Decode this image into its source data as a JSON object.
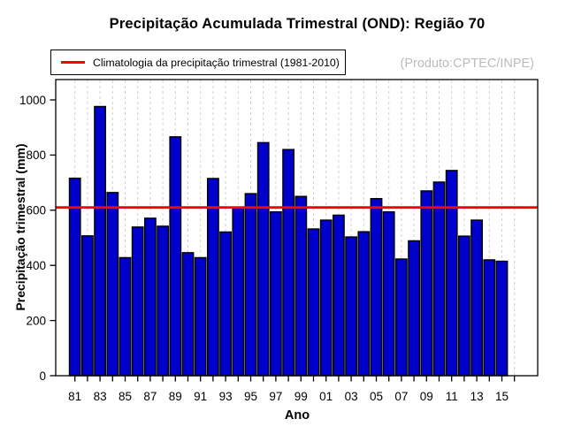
{
  "chart_data": {
    "type": "bar",
    "title": "Precipitação Acumulada Trimestral (OND): Região 70",
    "xlabel": "Ano",
    "ylabel": "Precipitação trimestral (mm)",
    "source_label": "(Produto:CPTEC/INPE)",
    "legend": {
      "label": "Climatologia da precipitação trimestral (1981-2010)",
      "position": "top-left",
      "line_color": "#ff0000"
    },
    "ylim": [
      0,
      1074
    ],
    "yticks": [
      0,
      200,
      400,
      600,
      800,
      1000
    ],
    "grid": {
      "style": "dashed-vertical",
      "color": "#d2d2d2"
    },
    "years": [
      1981,
      1982,
      1983,
      1984,
      1985,
      1986,
      1987,
      1988,
      1989,
      1990,
      1991,
      1992,
      1993,
      1994,
      1995,
      1996,
      1997,
      1998,
      1999,
      2000,
      2001,
      2002,
      2003,
      2004,
      2005,
      2006,
      2007,
      2008,
      2009,
      2010,
      2011,
      2012,
      2013,
      2014,
      2015
    ],
    "values": [
      716,
      507,
      976,
      664,
      428,
      539,
      571,
      542,
      866,
      446,
      428,
      715,
      521,
      608,
      660,
      845,
      594,
      820,
      650,
      532,
      564,
      582,
      503,
      522,
      642,
      594,
      423,
      489,
      670,
      702,
      744,
      506,
      564,
      420,
      415
    ],
    "x_tick_labels": [
      "81",
      "83",
      "85",
      "87",
      "89",
      "91",
      "93",
      "95",
      "97",
      "99",
      "01",
      "03",
      "05",
      "07",
      "09",
      "11",
      "13",
      "15"
    ],
    "x_axis_extra_year": 2016,
    "climatology_line": {
      "value": 610,
      "period": "1981-2010",
      "color": "#ff0000"
    },
    "bar_color": "#0000cd",
    "bar_border_color": "#000000"
  }
}
